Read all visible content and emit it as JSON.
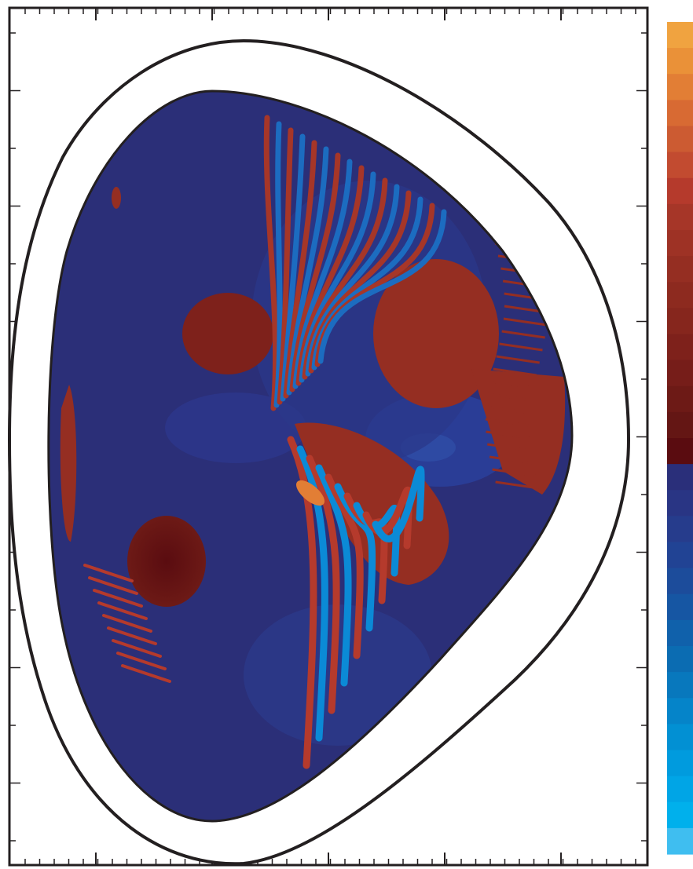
{
  "chart_data": {
    "type": "heatmap",
    "title": "",
    "xlabel": "",
    "ylabel": "",
    "colorbar_label": "",
    "grid": false,
    "legend": "none",
    "x_ticks": {
      "major_count": 6,
      "minor_per_major": 7
    },
    "y_ticks": {
      "major_count": 8
    },
    "colorbar": {
      "levels": 30,
      "negative_colors": [
        "#3fbef0",
        "#00b0ec",
        "#00a5e6",
        "#009bde",
        "#0290d3",
        "#0584c9",
        "#0878bd",
        "#0b6cb2",
        "#1061ab",
        "#1656a3",
        "#1c4c9b",
        "#214394",
        "#263c8c",
        "#293584",
        "#2a2f7a"
      ],
      "positive_colors": [
        "#5a0c10",
        "#641614",
        "#6d1a16",
        "#761d19",
        "#7e211b",
        "#86261d",
        "#8d2a1f",
        "#952e22",
        "#9e3225",
        "#a63628",
        "#b53a2c",
        "#c24b30",
        "#cc5b32",
        "#d86a33",
        "#e27e35",
        "#ea9138",
        "#f0a340"
      ]
    },
    "colors": {
      "background": "#2b2f78",
      "boundary": "#231f20"
    }
  }
}
